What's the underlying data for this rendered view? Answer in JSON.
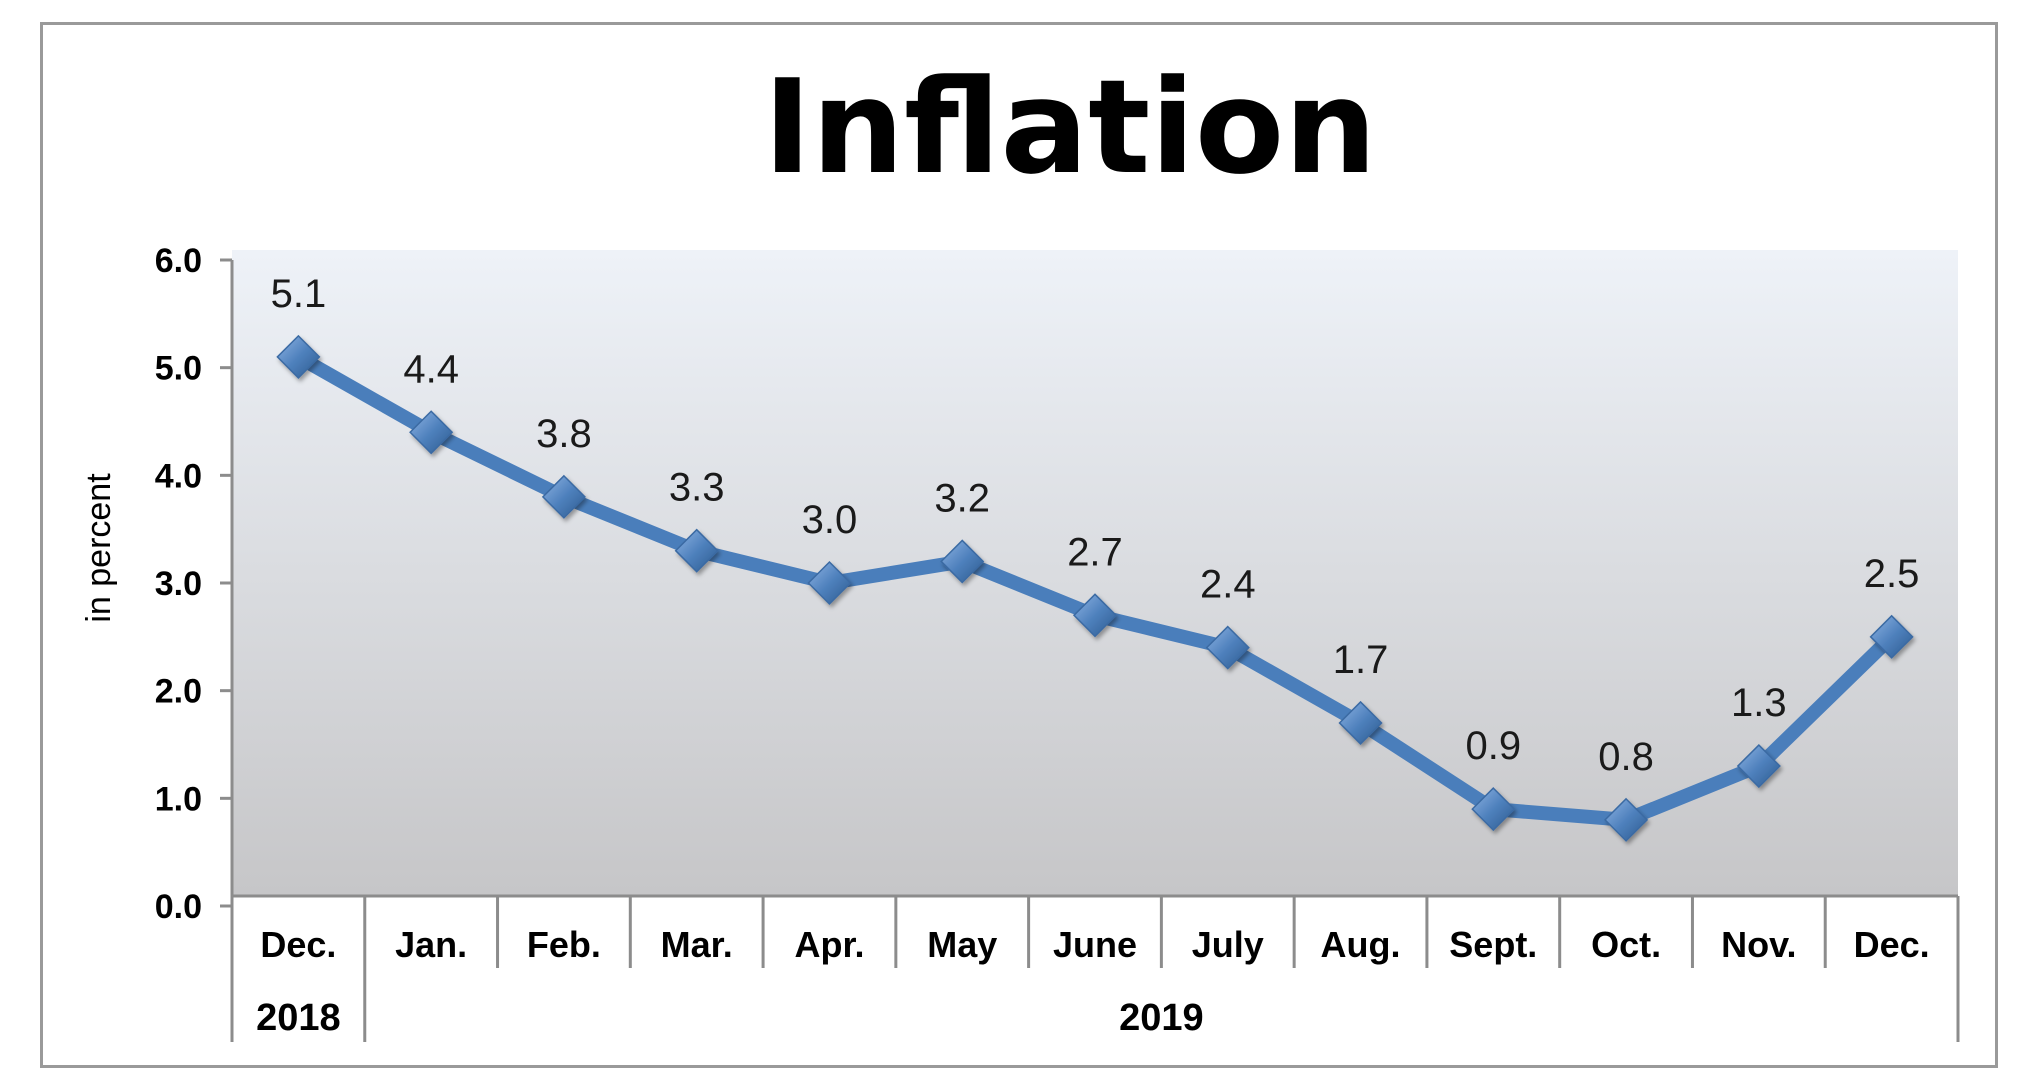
{
  "chart_data": {
    "type": "line",
    "title": "Inflation",
    "ylabel": "in percent",
    "xlabel": "",
    "categories": [
      "Dec.",
      "Jan.",
      "Feb.",
      "Mar.",
      "Apr.",
      "May",
      "June",
      "July",
      "Aug.",
      "Sept.",
      "Oct.",
      "Nov.",
      "Dec."
    ],
    "year_groups": [
      {
        "label": "2018",
        "span": 1
      },
      {
        "label": "2019",
        "span": 12
      }
    ],
    "series": [
      {
        "values": [
          5.1,
          4.4,
          3.8,
          3.3,
          3.0,
          3.2,
          2.7,
          2.4,
          1.7,
          0.9,
          0.8,
          1.3,
          2.5
        ],
        "labels": [
          "5.1",
          "4.4",
          "3.8",
          "3.3",
          "3.0",
          "3.2",
          "2.7",
          "2.4",
          "1.7",
          "0.9",
          "0.8",
          "1.3",
          "2.5"
        ]
      }
    ],
    "ylim": [
      0,
      6
    ],
    "yticks": [
      "0.0",
      "1.0",
      "2.0",
      "3.0",
      "4.0",
      "5.0",
      "6.0"
    ],
    "grid": false,
    "legend": "none",
    "colors": {
      "line": "#4a7ebb",
      "marker": "#4f81bd",
      "plot_bg_top": "#eef2f8",
      "plot_bg_bottom": "#c6c6c8"
    }
  }
}
